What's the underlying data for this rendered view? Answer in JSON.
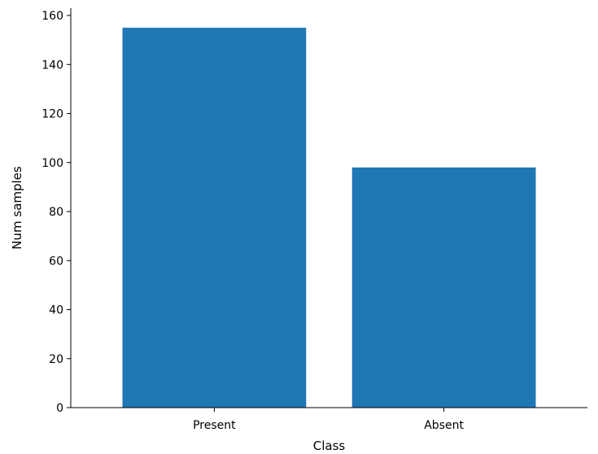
{
  "chart_data": {
    "type": "bar",
    "categories": [
      "Present",
      "Absent"
    ],
    "values": [
      155,
      98
    ],
    "title": "",
    "xlabel": "Class",
    "ylabel": "Num samples",
    "ylim": [
      0,
      163
    ],
    "yticks": [
      0,
      20,
      40,
      60,
      80,
      100,
      120,
      140,
      160
    ],
    "grid": false,
    "legend": "none",
    "colors": {
      "bar": "#1f77b4",
      "axis": "#000000",
      "background": "#ffffff"
    }
  }
}
